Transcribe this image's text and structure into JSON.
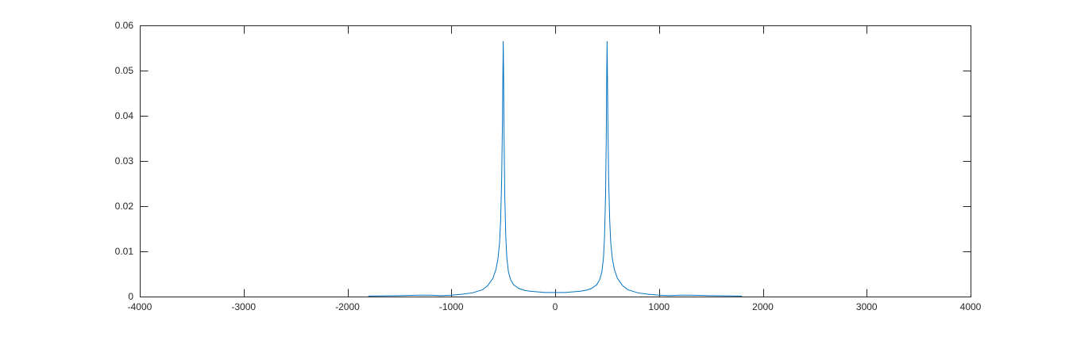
{
  "chart_data": {
    "type": "line",
    "title": "",
    "xlabel": "",
    "ylabel": "",
    "xlim": [
      -4000,
      4000
    ],
    "ylim": [
      0,
      0.06
    ],
    "x_ticks": [
      -4000,
      -3000,
      -2000,
      -1000,
      0,
      1000,
      2000,
      3000,
      4000
    ],
    "x_tick_labels": [
      "-4000",
      "-3000",
      "-2000",
      "-1000",
      "0",
      "1000",
      "2000",
      "3000",
      "4000"
    ],
    "y_ticks": [
      0,
      0.01,
      0.02,
      0.03,
      0.04,
      0.05,
      0.06
    ],
    "y_tick_labels": [
      "0",
      "0.01",
      "0.02",
      "0.03",
      "0.04",
      "0.05",
      "0.06"
    ],
    "grid": false,
    "legend": "none",
    "line_color": "#0072BD",
    "series": [
      {
        "x": [
          -1800,
          -1500,
          -1300,
          -1200,
          -1100,
          -1000,
          -900,
          -800,
          -700,
          -650,
          -600,
          -570,
          -550,
          -535,
          -525,
          -515,
          -508,
          -503,
          -500,
          -497,
          -492,
          -485,
          -475,
          -465,
          -450,
          -430,
          -400,
          -350,
          -300,
          -250,
          -200,
          -150,
          -100,
          -50,
          0,
          50,
          100,
          150,
          200,
          250,
          300,
          350,
          400,
          430,
          450,
          465,
          475,
          485,
          492,
          497,
          500,
          503,
          508,
          515,
          525,
          535,
          550,
          570,
          600,
          650,
          700,
          800,
          900,
          1000,
          1100,
          1200,
          1300,
          1500,
          1800
        ],
        "y": [
          0.0001,
          0.0002,
          0.0003,
          0.0003,
          0.0002,
          0.0003,
          0.0005,
          0.0008,
          0.0015,
          0.0024,
          0.004,
          0.006,
          0.0085,
          0.012,
          0.017,
          0.026,
          0.038,
          0.05,
          0.0565,
          0.05,
          0.035,
          0.022,
          0.013,
          0.0085,
          0.0055,
          0.0038,
          0.0026,
          0.0018,
          0.0014,
          0.0012,
          0.0011,
          0.001,
          0.0009,
          0.0009,
          0.0009,
          0.0009,
          0.0009,
          0.001,
          0.0011,
          0.0012,
          0.0014,
          0.0018,
          0.0026,
          0.0038,
          0.0055,
          0.0085,
          0.013,
          0.022,
          0.035,
          0.05,
          0.0565,
          0.05,
          0.038,
          0.026,
          0.017,
          0.012,
          0.0085,
          0.006,
          0.004,
          0.0024,
          0.0015,
          0.0008,
          0.0005,
          0.0003,
          0.0002,
          0.0003,
          0.0003,
          0.0002,
          0.0001
        ]
      }
    ]
  }
}
